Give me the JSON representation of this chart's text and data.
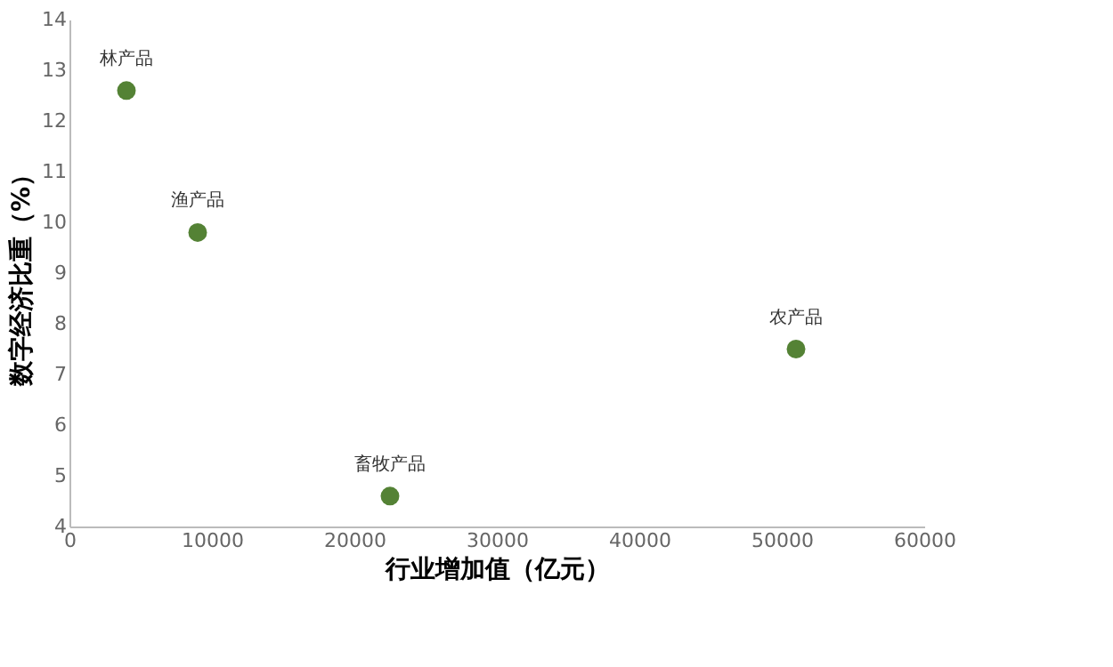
{
  "chart_data": {
    "type": "scatter",
    "xlabel": "行业增加值（亿元）",
    "ylabel": "数字经济比重（%）",
    "x": [
      4000,
      9000,
      22500,
      51000
    ],
    "series": [
      {
        "color": "#548235",
        "values": [
          12.6,
          9.8,
          4.6,
          7.5
        ]
      }
    ],
    "annotations": [
      {
        "text": "林产品",
        "x": 4000,
        "y": 12.6
      },
      {
        "text": "渔产品",
        "x": 9000,
        "y": 9.8
      },
      {
        "text": "畜牧产品",
        "x": 22500,
        "y": 4.6
      },
      {
        "text": "农产品",
        "x": 51000,
        "y": 7.5
      }
    ],
    "xlim": [
      0,
      60000
    ],
    "xticks": [
      0,
      10000,
      20000,
      30000,
      40000,
      50000,
      60000
    ],
    "ylim": [
      4,
      14
    ],
    "yticks": [
      4,
      5,
      6,
      7,
      8,
      9,
      10,
      11,
      12,
      13,
      14
    ],
    "grid": false,
    "marker": "circle"
  }
}
